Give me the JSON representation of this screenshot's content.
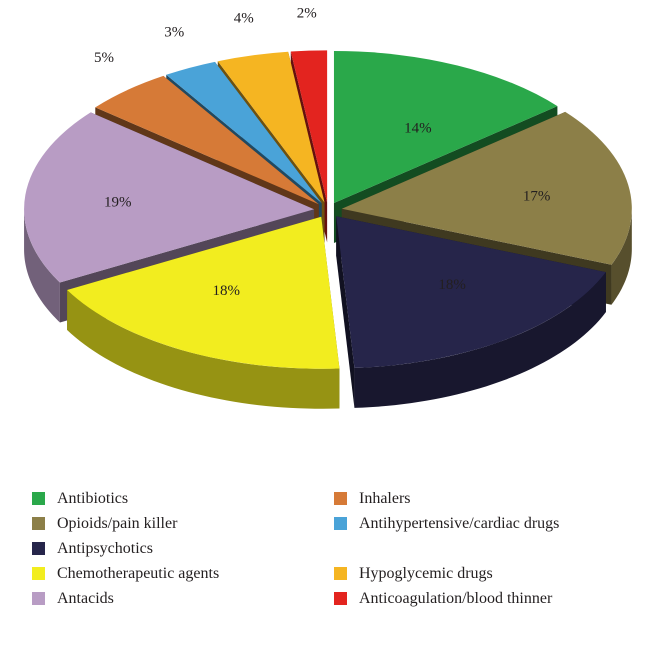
{
  "chart_data": {
    "type": "pie",
    "title": "",
    "categories": [
      "Antibiotics",
      "Opioids/pain killer",
      "Antipsychotics",
      "Chemotherapeutic agents",
      "Antacids",
      "Inhalers",
      "Antihypertensive/cardiac drugs",
      "Hypoglycemic drugs",
      "Anticoagulation/blood thinner"
    ],
    "values": [
      14,
      17,
      18,
      18,
      19,
      5,
      3,
      4,
      2
    ],
    "labels": [
      "14%",
      "17%",
      "18%",
      "18%",
      "19%",
      "5%",
      "3%",
      "4%",
      "2%"
    ],
    "colors": [
      "#2aa84a",
      "#8c7f48",
      "#26254a",
      "#f2ed1f",
      "#b89cc4",
      "#d67a37",
      "#4aa3d8",
      "#f5b522",
      "#e3241f"
    ],
    "exploded": true,
    "three_d": true,
    "legend_position": "bottom"
  },
  "legend": {
    "left": [
      {
        "label": "Antibiotics",
        "color": "#2aa84a"
      },
      {
        "label": "Opioids/pain killer",
        "color": "#8c7f48"
      },
      {
        "label": "Antipsychotics",
        "color": "#26254a"
      },
      {
        "label": "Chemotherapeutic agents",
        "color": "#f2ed1f"
      },
      {
        "label": "Antacids",
        "color": "#b89cc4"
      }
    ],
    "right": [
      {
        "label": "Inhalers",
        "color": "#d67a37"
      },
      {
        "label": "Antihypertensive/cardiac drugs",
        "color": "#4aa3d8"
      },
      {
        "label": "Hypoglycemic drugs",
        "color": "#f5b522"
      },
      {
        "label": "Anticoagulation/blood thinner",
        "color": "#e3241f"
      }
    ]
  }
}
